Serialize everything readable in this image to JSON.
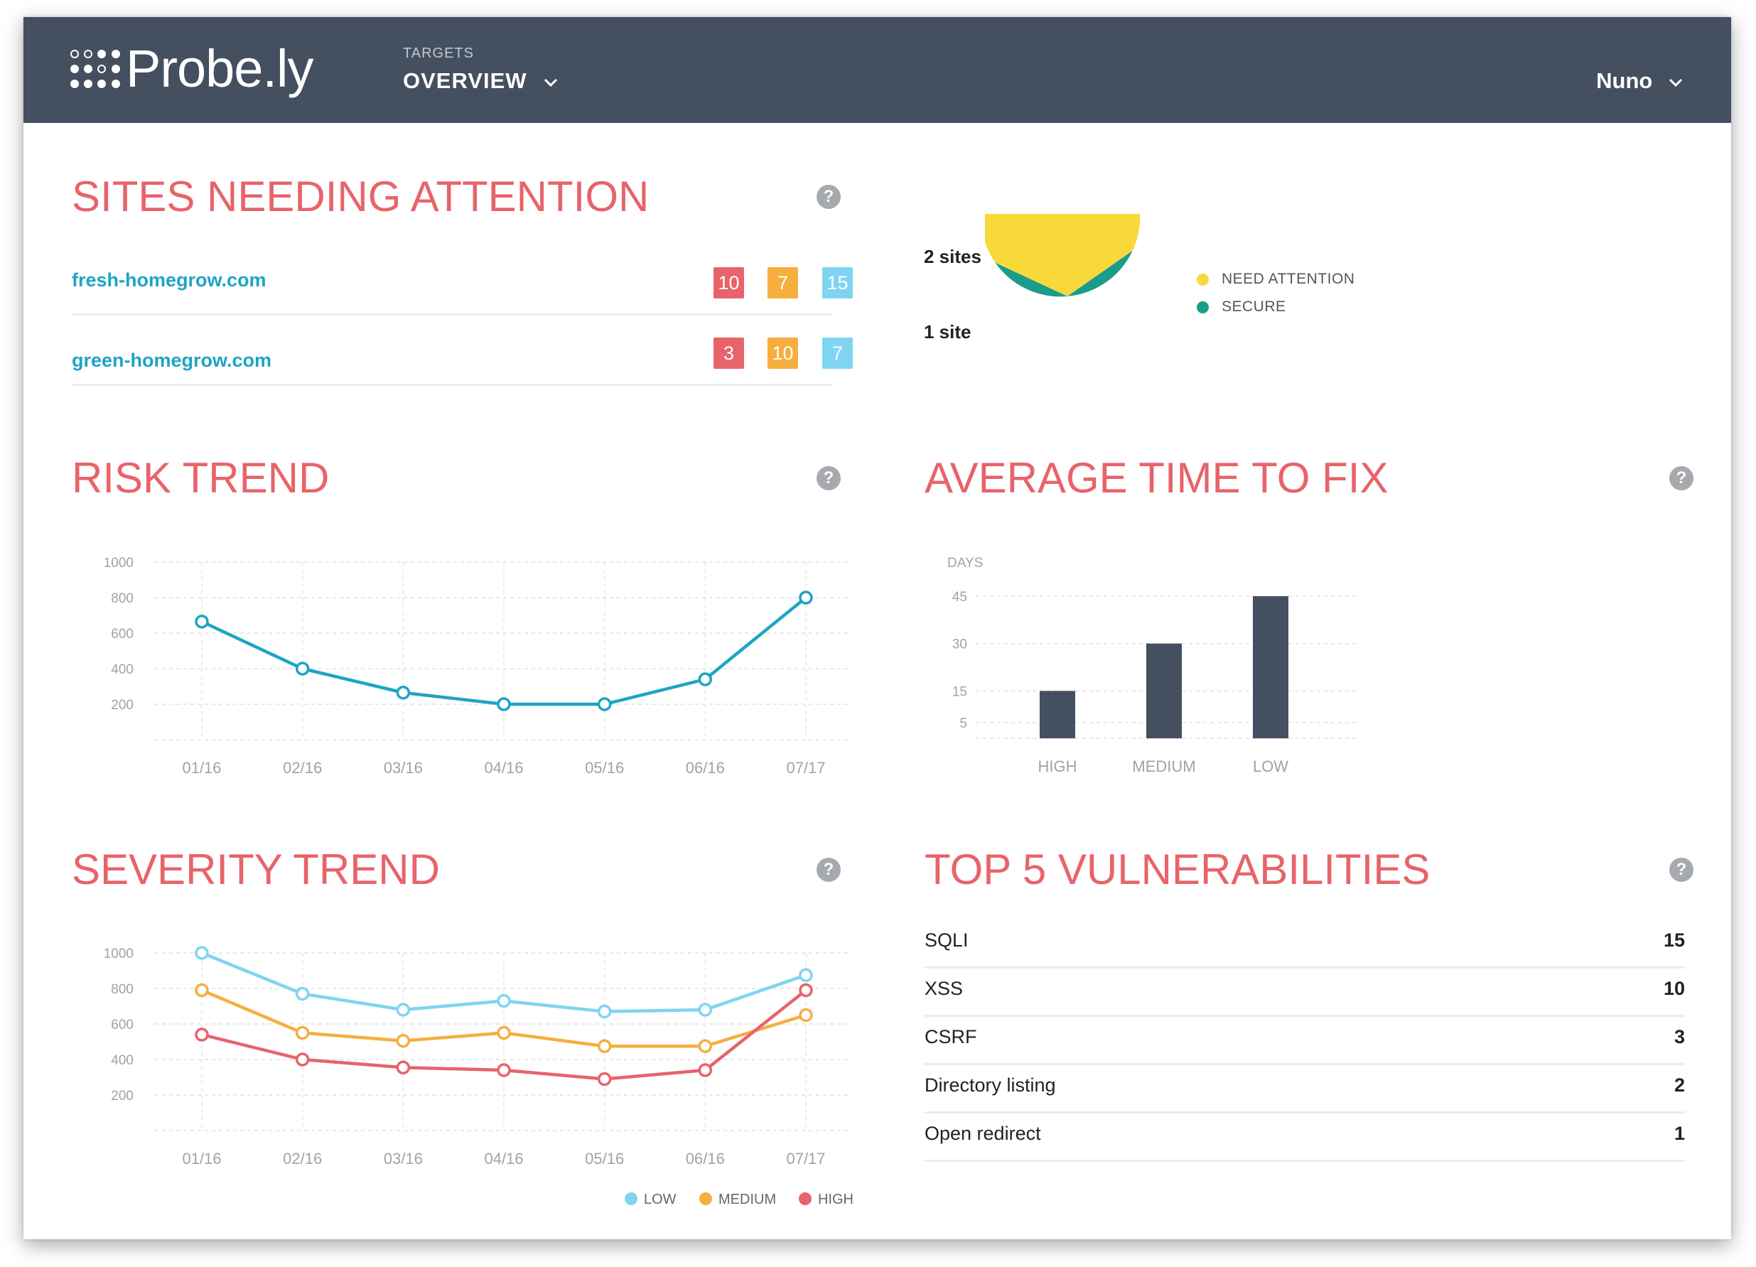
{
  "navbar": {
    "logo": "Probe.ly",
    "section_label": "TARGETS",
    "view_label": "OVERVIEW",
    "user_name": "Nuno"
  },
  "sites_needing_attention": {
    "title": "SITES NEEDING ATTENTION",
    "help": "?",
    "rows": [
      {
        "site": "fresh-homegrow.com",
        "high": "10",
        "medium": "7",
        "low": "15"
      },
      {
        "site": "green-homegrow.com",
        "high": "3",
        "medium": "10",
        "low": "7"
      }
    ]
  },
  "site_status": {
    "label_attention": "2 sites",
    "label_secure": "1 site",
    "legend": [
      "NEED ATTENTION",
      "SECURE"
    ],
    "colors": {
      "attention": "#f9d83a",
      "secure": "#1a9c8a"
    }
  },
  "risk_trend": {
    "title": "RISK TREND",
    "help": "?"
  },
  "avg_time_to_fix": {
    "title": "AVERAGE TIME TO FIX",
    "help": "?"
  },
  "severity_trend": {
    "title": "SEVERITY TREND",
    "help": "?",
    "legend": [
      "LOW",
      "MEDIUM",
      "HIGH"
    ]
  },
  "top_vulnerabilities": {
    "title": "TOP 5 VULNERABILITIES",
    "help": "?",
    "items": [
      {
        "name": "SQLI",
        "count": "15"
      },
      {
        "name": "XSS",
        "count": "10"
      },
      {
        "name": "CSRF",
        "count": "3"
      },
      {
        "name": "Directory listing",
        "count": "2"
      },
      {
        "name": "Open redirect",
        "count": "1"
      }
    ]
  },
  "chart_data": [
    {
      "id": "pie",
      "type": "pie",
      "title": "",
      "categories": [
        "NEED ATTENTION",
        "SECURE"
      ],
      "values": [
        2,
        1
      ],
      "colors": [
        "#f9d83a",
        "#1a9c8a"
      ]
    },
    {
      "id": "risk",
      "type": "line",
      "title": "RISK TREND",
      "x": [
        "01/16",
        "02/16",
        "03/16",
        "04/16",
        "05/16",
        "06/16",
        "07/17"
      ],
      "series": [
        {
          "name": "Risk",
          "values": [
            665,
            400,
            265,
            200,
            200,
            340,
            800
          ],
          "color": "#1ea4c3"
        }
      ],
      "yticks": [
        200,
        400,
        600,
        800,
        1000
      ],
      "ylim": [
        0,
        1000
      ],
      "grid": true
    },
    {
      "id": "fix",
      "type": "bar",
      "title": "AVERAGE TIME TO FIX",
      "ylabel": "DAYS",
      "categories": [
        "HIGH",
        "MEDIUM",
        "LOW"
      ],
      "values": [
        15,
        30,
        45
      ],
      "yticks": [
        5,
        15,
        30,
        45
      ],
      "color": "#444f60",
      "grid": true
    },
    {
      "id": "severity",
      "type": "line",
      "title": "SEVERITY TREND",
      "x": [
        "01/16",
        "02/16",
        "03/16",
        "04/16",
        "05/16",
        "06/16",
        "07/17"
      ],
      "series": [
        {
          "name": "LOW",
          "values": [
            1000,
            770,
            680,
            730,
            670,
            680,
            875
          ],
          "color": "#7fd4f2"
        },
        {
          "name": "MEDIUM",
          "values": [
            790,
            550,
            505,
            550,
            475,
            475,
            650
          ],
          "color": "#f6ae3f"
        },
        {
          "name": "HIGH",
          "values": [
            540,
            400,
            355,
            340,
            290,
            340,
            790
          ],
          "color": "#e8636a"
        }
      ],
      "yticks": [
        200,
        400,
        600,
        800,
        1000
      ],
      "ylim": [
        0,
        1000
      ],
      "grid": true
    }
  ]
}
